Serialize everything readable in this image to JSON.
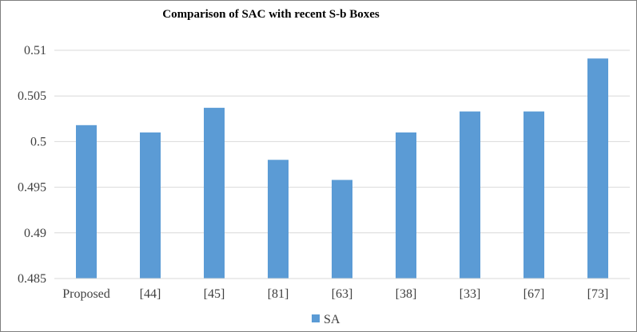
{
  "chart_data": {
    "type": "bar",
    "title": "Comparison of SAC with recent S-b Boxes",
    "xlabel": "",
    "ylabel": "",
    "categories": [
      "Proposed",
      "[44]",
      "[45]",
      "[81]",
      "[63]",
      "[38]",
      "[33]",
      "[67]",
      "[73]"
    ],
    "series": [
      {
        "name": "SA",
        "color": "#5b9bd5",
        "values": [
          0.5018,
          0.501,
          0.5037,
          0.498,
          0.4958,
          0.501,
          0.5033,
          0.5033,
          0.5091
        ]
      }
    ],
    "ylim": [
      0.485,
      0.51
    ],
    "yticks": [
      "0.485",
      "0.49",
      "0.495",
      "0.5",
      "0.505",
      "0.51"
    ],
    "grid": true,
    "legend_position": "bottom"
  }
}
